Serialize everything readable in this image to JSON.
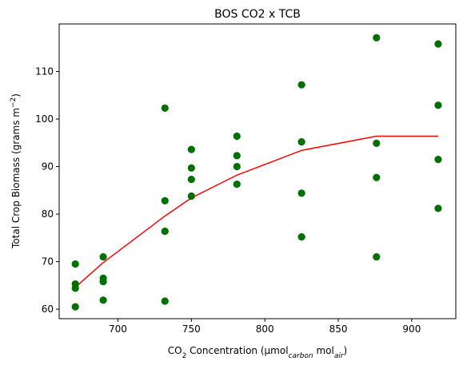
{
  "chart_data": {
    "type": "scatter",
    "title": "BOS CO2 x TCB",
    "xlabel": {
      "prefix": "CO",
      "prefix_sub": "2",
      "main": " Concentration (µmol",
      "sub1": "carbon",
      "mid": " mol",
      "sub2": "air",
      "suffix": ")"
    },
    "ylabel": {
      "main": "Total Crop Biomass (grams m",
      "sup": "−2",
      "suffix": ")"
    },
    "xlim": [
      660,
      930
    ],
    "ylim": [
      58,
      120
    ],
    "xticks": [
      700,
      750,
      800,
      850,
      900
    ],
    "yticks": [
      60,
      70,
      80,
      90,
      100,
      110
    ],
    "series": [
      {
        "name": "observations",
        "kind": "scatter",
        "color": "#007000",
        "points": [
          [
            671,
            69.5
          ],
          [
            671,
            65.3
          ],
          [
            671,
            64.4
          ],
          [
            671,
            60.5
          ],
          [
            690,
            71.0
          ],
          [
            690,
            66.5
          ],
          [
            690,
            65.8
          ],
          [
            690,
            61.9
          ],
          [
            732,
            102.3
          ],
          [
            732,
            82.8
          ],
          [
            732,
            76.4
          ],
          [
            732,
            61.7
          ],
          [
            750,
            93.6
          ],
          [
            750,
            89.7
          ],
          [
            750,
            87.3
          ],
          [
            750,
            83.8
          ],
          [
            781,
            96.4
          ],
          [
            781,
            92.3
          ],
          [
            781,
            90.0
          ],
          [
            781,
            86.3
          ],
          [
            825,
            107.2
          ],
          [
            825,
            95.2
          ],
          [
            825,
            84.4
          ],
          [
            825,
            75.2
          ],
          [
            876,
            117.1
          ],
          [
            876,
            94.9
          ],
          [
            876,
            87.7
          ],
          [
            876,
            71.0
          ],
          [
            918,
            115.8
          ],
          [
            918,
            102.9
          ],
          [
            918,
            91.5
          ],
          [
            918,
            81.2
          ]
        ]
      },
      {
        "name": "fit",
        "kind": "line",
        "color": "#ff0000",
        "points": [
          [
            671,
            64.6
          ],
          [
            690,
            69.8
          ],
          [
            732,
            79.6
          ],
          [
            750,
            83.4
          ],
          [
            781,
            88.2
          ],
          [
            825,
            93.4
          ],
          [
            876,
            96.4
          ],
          [
            918,
            96.4
          ]
        ]
      }
    ]
  }
}
